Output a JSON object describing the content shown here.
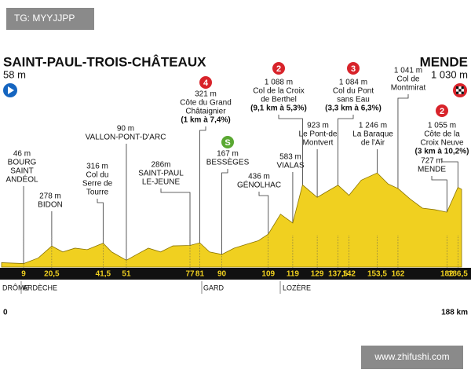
{
  "watermark_top": "TG: MYYJJPP",
  "watermark_bottom": "www.zhifushi.com",
  "chart_data": {
    "type": "area",
    "start_title": "SAINT-PAUL-TROIS-CHÂTEAUX",
    "start_altitude": "58 m",
    "finish_title": "MENDE",
    "finish_altitude": "1 030 m",
    "color": "#f0d020",
    "edge_color": "#8a7400",
    "x": [
      0,
      9,
      15,
      20.5,
      25,
      30,
      35,
      41.5,
      45,
      51,
      56,
      60,
      65,
      70,
      77,
      81,
      85,
      90,
      95,
      100,
      105,
      109,
      114,
      119,
      123,
      129,
      133,
      137.5,
      142,
      147,
      153.5,
      158,
      162,
      167,
      172,
      177,
      182,
      186.5,
      188
    ],
    "values": [
      58,
      46,
      120,
      278,
      200,
      250,
      230,
      316,
      200,
      90,
      180,
      250,
      200,
      280,
      286,
      321,
      200,
      167,
      250,
      300,
      350,
      436,
      700,
      583,
      1088,
      923,
      1000,
      1084,
      950,
      1150,
      1246,
      1100,
      1041,
      900,
      780,
      760,
      727,
      1055,
      1030
    ],
    "xlim": [
      0,
      188
    ],
    "ylim": [
      0,
      1300
    ],
    "xticks": [
      9,
      {
        "value": 20.5,
        "label": "20,5"
      },
      {
        "value": 41.5,
        "label": "41,5"
      },
      51,
      77,
      81,
      90,
      109,
      119,
      129,
      {
        "value": 137.5,
        "label": "137,5"
      },
      142,
      {
        "value": 153.5,
        "label": "153,5"
      },
      162,
      182,
      {
        "value": 186.5,
        "label": "186,5"
      }
    ],
    "start_label": "0",
    "end_label": "188 km",
    "regions": [
      "DRÔME",
      "ARDÈCHE",
      "GARD",
      "LOZÈRE"
    ],
    "waypoints": [
      {
        "km": 9,
        "lines": [
          "46 m",
          "BOURG",
          "SAINT",
          "ANDÉOL"
        ]
      },
      {
        "km": 20.5,
        "lines": [
          "278 m",
          "BIDON"
        ]
      },
      {
        "km": 41.5,
        "lines": [
          "316 m",
          "Col du",
          "Serre de",
          "Tourre"
        ]
      },
      {
        "km": 51,
        "lines": [
          "90 m",
          "VALLON-PONT-D'ARC"
        ]
      },
      {
        "km": 77,
        "lines": [
          "286m",
          "SAINT-PAUL",
          "LE-JEUNE"
        ]
      },
      {
        "km": 81,
        "lines": [
          "321 m",
          "Côte du Grand",
          "Châtaignier",
          "(1 km à 7,4%)"
        ],
        "badge": "4",
        "badge_color": "#d8232a"
      },
      {
        "km": 90,
        "lines": [
          "167 m",
          "BESSÈGES"
        ],
        "badge": "S",
        "badge_color": "#5aa832"
      },
      {
        "km": 109,
        "lines": [
          "436 m",
          "GÉNOLHAC"
        ]
      },
      {
        "km": 119,
        "lines": [
          "583 m",
          "VIALAS"
        ]
      },
      {
        "km": 123,
        "lines": [
          "1 088 m",
          "Col de la Croix",
          "de Berthel",
          "(9,1 km à 5,3%)"
        ],
        "badge": "2",
        "badge_color": "#d8232a"
      },
      {
        "km": 129,
        "lines": [
          "923 m",
          "Le Pont-de",
          "Montvert"
        ]
      },
      {
        "km": 137.5,
        "lines": [
          "1 084 m",
          "Col du Pont",
          "sans Eau",
          "(3,3 km à 6,3%)"
        ],
        "badge": "3",
        "badge_color": "#d8232a"
      },
      {
        "km": 153.5,
        "lines": [
          "1 246 m",
          "La Baraque",
          "de l'Air"
        ]
      },
      {
        "km": 162,
        "lines": [
          "1 041 m",
          "Col de",
          "Montmirat"
        ]
      },
      {
        "km": 182,
        "lines": [
          "727 m",
          "MENDE"
        ]
      },
      {
        "km": 186.5,
        "lines": [
          "1 055 m",
          "Côte de la",
          "Croix Neuve",
          "(3 km à 10,2%)"
        ],
        "badge": "2",
        "badge_color": "#d8232a"
      }
    ]
  }
}
